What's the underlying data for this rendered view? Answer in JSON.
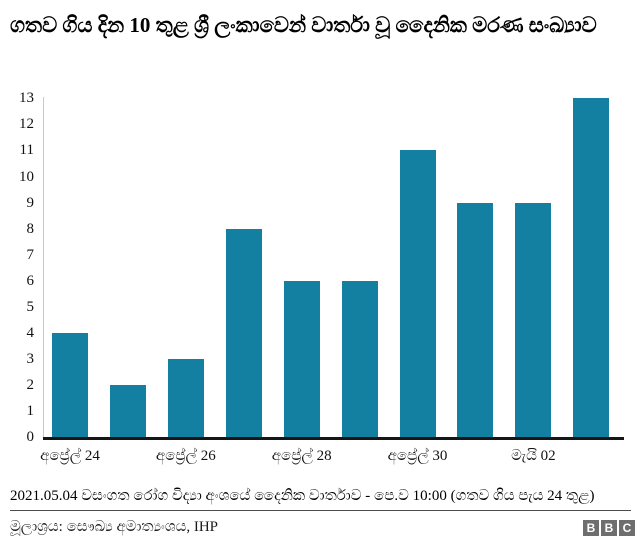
{
  "title": "ගතව ගිය දින 10 තුළ ශ්‍රී ලංකාවෙන් වාර්තා වූ දෛනික මරණ සංඛ්‍යාව",
  "chart_data": {
    "type": "bar",
    "title": "ගතව ගිය දින 10 තුළ ශ්‍රී ලංකාවෙන් වාර්තා වූ දෛනික මරණ සංඛ්‍යාව",
    "values": [
      4,
      2,
      3,
      8,
      6,
      6,
      11,
      9,
      9,
      13
    ],
    "x_tick_labels": [
      "අප්‍රේල් 24",
      "අප්‍රේල් 26",
      "අප්‍රේල් 28",
      "අප්‍රේල් 30",
      "මැයි 02"
    ],
    "x_tick_every": 2,
    "y_ticks": [
      0,
      1,
      2,
      3,
      4,
      5,
      6,
      7,
      8,
      9,
      10,
      11,
      12,
      13
    ],
    "ylim": [
      0,
      13
    ],
    "xlabel": "",
    "ylabel": "",
    "grid": false,
    "legend": false,
    "bar_color": "#1380a1"
  },
  "footer": {
    "caption": "2021.05.04 වසංගත රෝග විද්‍යා අංශයේ දෛනික වාර්තාව - පෙ.ව 10:00 (ගතව ගිය පැය 24 තුළ)",
    "source": "මූලාශ්‍රය: සෞඛ්‍ය අමාත්‍යංශය, IHP",
    "logo_letters": [
      "B",
      "B",
      "C"
    ]
  },
  "colors": {
    "bar": "#1380a1",
    "x_axis_line": "#161616",
    "y_axis_line": "#c9c9c9",
    "divider": "#4d4d4d",
    "logo_block": "#6e6e6e"
  }
}
